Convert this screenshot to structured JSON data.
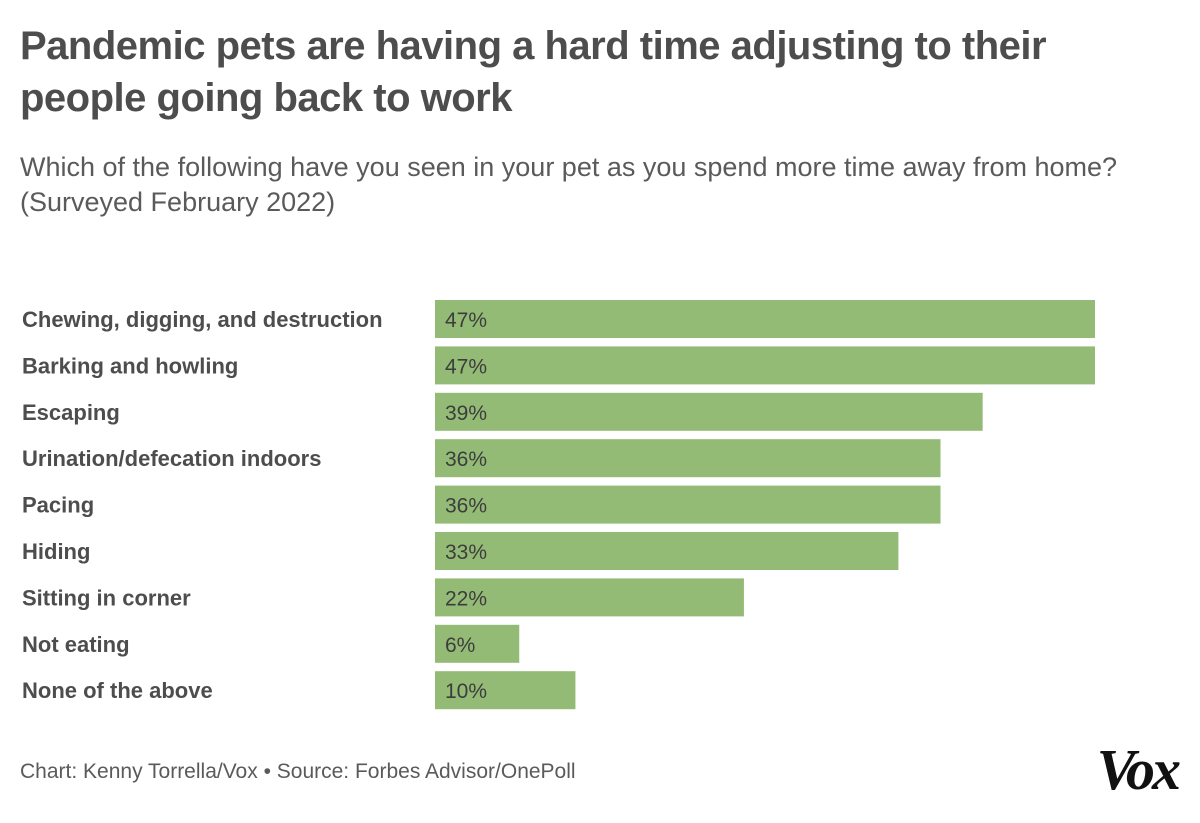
{
  "header": {
    "title": "Pandemic pets are having a hard time adjusting to their people going back to work",
    "subtitle": "Which of the following have you seen in your pet as you spend more time away from home? (Surveyed February 2022)"
  },
  "footer": {
    "credit": "Chart: Kenny Torrella/Vox • Source: Forbes Advisor/OnePoll",
    "logo": "Vox"
  },
  "colors": {
    "bar": "#93bb76",
    "text": "#4d4d4d"
  },
  "chart_data": {
    "type": "bar",
    "orientation": "horizontal",
    "categories": [
      "Chewing, digging, and destruction",
      "Barking and howling",
      "Escaping",
      "Urination/defecation indoors",
      "Pacing",
      "Hiding",
      "Sitting in corner",
      "Not eating",
      "None of the above"
    ],
    "values": [
      47,
      47,
      39,
      36,
      36,
      33,
      22,
      6,
      10
    ],
    "value_labels": [
      "47%",
      "47%",
      "39%",
      "36%",
      "36%",
      "33%",
      "22%",
      "6%",
      "10%"
    ],
    "title": "Pandemic pets are having a hard time adjusting to their people going back to work",
    "subtitle": "Which of the following have you seen in your pet as you spend more time away from home? (Surveyed February 2022)",
    "xlabel": "",
    "ylabel": "",
    "xlim": [
      0,
      47
    ],
    "grid": false,
    "legend": "none"
  }
}
